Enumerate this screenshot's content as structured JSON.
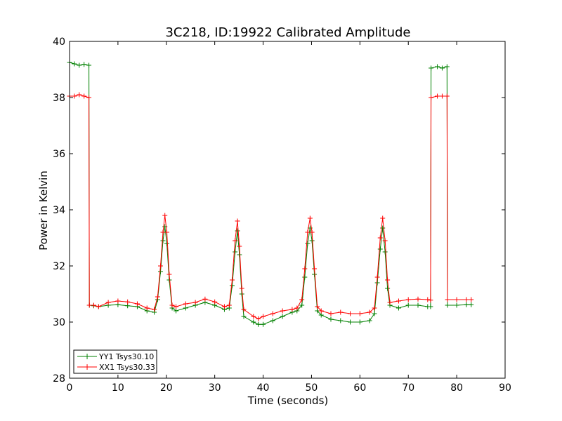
{
  "chart_data": {
    "type": "line",
    "title": "3C218, ID:19922 Calibrated Amplitude",
    "xlabel": "Time (seconds)",
    "ylabel": "Power in Kelvin",
    "xlim": [
      0,
      90
    ],
    "ylim": [
      28,
      40
    ],
    "xticks": [
      0,
      10,
      20,
      30,
      40,
      50,
      60,
      70,
      80,
      90
    ],
    "yticks": [
      28,
      30,
      32,
      34,
      36,
      38,
      40
    ],
    "grid": false,
    "legend_position": "lower-left",
    "marker": "+",
    "series": [
      {
        "name": "YY1 Tsys30.10",
        "color": "#008000",
        "points": [
          [
            0,
            39.25
          ],
          [
            1,
            39.2
          ],
          [
            2,
            39.15
          ],
          [
            3,
            39.18
          ],
          [
            4,
            39.15
          ],
          [
            4.1,
            30.6
          ],
          [
            5,
            30.58
          ],
          [
            6,
            30.55
          ],
          [
            8,
            30.6
          ],
          [
            10,
            30.62
          ],
          [
            12,
            30.58
          ],
          [
            14,
            30.55
          ],
          [
            16,
            30.4
          ],
          [
            17.5,
            30.35
          ],
          [
            18.2,
            30.8
          ],
          [
            18.8,
            31.8
          ],
          [
            19.3,
            32.9
          ],
          [
            19.7,
            33.4
          ],
          [
            20.1,
            32.8
          ],
          [
            20.6,
            31.5
          ],
          [
            21.2,
            30.5
          ],
          [
            22,
            30.4
          ],
          [
            24,
            30.5
          ],
          [
            26,
            30.6
          ],
          [
            28,
            30.7
          ],
          [
            30,
            30.6
          ],
          [
            32,
            30.45
          ],
          [
            33,
            30.5
          ],
          [
            33.6,
            31.3
          ],
          [
            34.2,
            32.5
          ],
          [
            34.7,
            33.25
          ],
          [
            35.1,
            32.4
          ],
          [
            35.6,
            31.0
          ],
          [
            36,
            30.2
          ],
          [
            38,
            30.0
          ],
          [
            39,
            29.92
          ],
          [
            40,
            29.92
          ],
          [
            42,
            30.05
          ],
          [
            44,
            30.2
          ],
          [
            46,
            30.35
          ],
          [
            47,
            30.4
          ],
          [
            48,
            30.6
          ],
          [
            48.6,
            31.6
          ],
          [
            49.2,
            32.8
          ],
          [
            49.7,
            33.35
          ],
          [
            50.1,
            32.9
          ],
          [
            50.6,
            31.7
          ],
          [
            51.2,
            30.4
          ],
          [
            52,
            30.25
          ],
          [
            54,
            30.1
          ],
          [
            56,
            30.05
          ],
          [
            58,
            30.0
          ],
          [
            60,
            30.0
          ],
          [
            62,
            30.05
          ],
          [
            63,
            30.3
          ],
          [
            63.6,
            31.4
          ],
          [
            64.2,
            32.6
          ],
          [
            64.7,
            33.35
          ],
          [
            65.2,
            32.5
          ],
          [
            65.7,
            31.2
          ],
          [
            66.2,
            30.6
          ],
          [
            68,
            30.5
          ],
          [
            70,
            30.6
          ],
          [
            72,
            30.6
          ],
          [
            74,
            30.55
          ],
          [
            74.6,
            30.55
          ],
          [
            74.7,
            39.05
          ],
          [
            76,
            39.1
          ],
          [
            77,
            39.05
          ],
          [
            78,
            39.1
          ],
          [
            78.1,
            30.6
          ],
          [
            80,
            30.6
          ],
          [
            82,
            30.62
          ],
          [
            83,
            30.62
          ]
        ]
      },
      {
        "name": "XX1 Tsys30.33",
        "color": "#ff0000",
        "points": [
          [
            0,
            38.05
          ],
          [
            1,
            38.05
          ],
          [
            2,
            38.1
          ],
          [
            3,
            38.05
          ],
          [
            4,
            38.0
          ],
          [
            4.1,
            30.6
          ],
          [
            5,
            30.6
          ],
          [
            6,
            30.55
          ],
          [
            8,
            30.7
          ],
          [
            10,
            30.75
          ],
          [
            12,
            30.72
          ],
          [
            14,
            30.65
          ],
          [
            16,
            30.5
          ],
          [
            17.5,
            30.45
          ],
          [
            18.2,
            30.9
          ],
          [
            18.8,
            32.0
          ],
          [
            19.3,
            33.2
          ],
          [
            19.7,
            33.8
          ],
          [
            20.1,
            33.2
          ],
          [
            20.6,
            31.7
          ],
          [
            21.2,
            30.6
          ],
          [
            22,
            30.55
          ],
          [
            24,
            30.65
          ],
          [
            26,
            30.7
          ],
          [
            28,
            30.82
          ],
          [
            30,
            30.72
          ],
          [
            32,
            30.55
          ],
          [
            33,
            30.6
          ],
          [
            33.6,
            31.5
          ],
          [
            34.2,
            32.9
          ],
          [
            34.7,
            33.6
          ],
          [
            35.1,
            32.7
          ],
          [
            35.6,
            31.2
          ],
          [
            36,
            30.45
          ],
          [
            38,
            30.2
          ],
          [
            39,
            30.12
          ],
          [
            40,
            30.2
          ],
          [
            42,
            30.3
          ],
          [
            44,
            30.4
          ],
          [
            46,
            30.45
          ],
          [
            47,
            30.5
          ],
          [
            48,
            30.8
          ],
          [
            48.6,
            31.9
          ],
          [
            49.2,
            33.2
          ],
          [
            49.7,
            33.7
          ],
          [
            50.1,
            33.2
          ],
          [
            50.6,
            31.9
          ],
          [
            51.2,
            30.55
          ],
          [
            52,
            30.4
          ],
          [
            54,
            30.3
          ],
          [
            56,
            30.35
          ],
          [
            58,
            30.3
          ],
          [
            60,
            30.3
          ],
          [
            62,
            30.35
          ],
          [
            63,
            30.5
          ],
          [
            63.6,
            31.6
          ],
          [
            64.2,
            33.0
          ],
          [
            64.7,
            33.7
          ],
          [
            65.2,
            32.9
          ],
          [
            65.7,
            31.5
          ],
          [
            66.2,
            30.7
          ],
          [
            68,
            30.75
          ],
          [
            70,
            30.8
          ],
          [
            72,
            30.82
          ],
          [
            74,
            30.8
          ],
          [
            74.6,
            30.78
          ],
          [
            74.7,
            38.0
          ],
          [
            76,
            38.05
          ],
          [
            77,
            38.05
          ],
          [
            78,
            38.05
          ],
          [
            78.1,
            30.8
          ],
          [
            80,
            30.8
          ],
          [
            82,
            30.8
          ],
          [
            83,
            30.8
          ]
        ]
      }
    ]
  }
}
